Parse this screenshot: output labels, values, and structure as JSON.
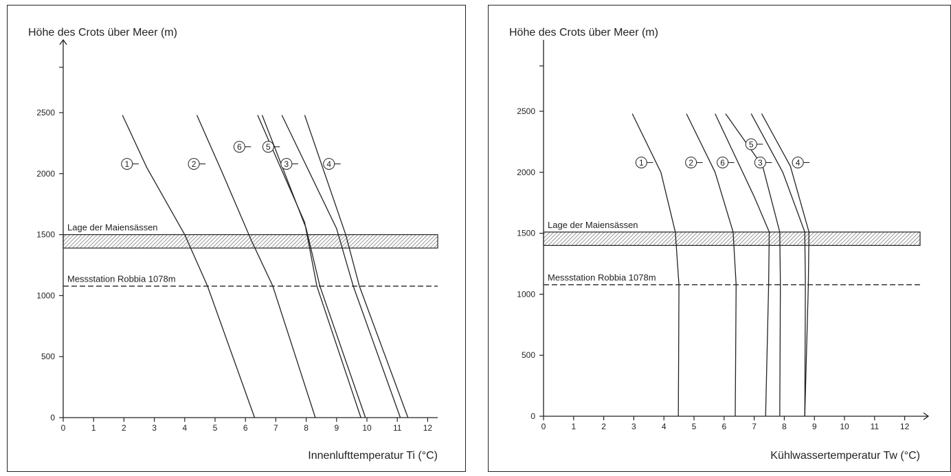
{
  "chart_data": [
    {
      "type": "line",
      "ylabel": "Höhe des Crots über Meer (m)",
      "xlabel": "Innenlufttemperatur Ti (°C)",
      "xlim": [
        0,
        12.4
      ],
      "ylim": [
        0,
        2900
      ],
      "x_ticks": [
        "0",
        "1",
        "2",
        "3",
        "4",
        "5",
        "6",
        "7",
        "8",
        "9",
        "10",
        "11",
        "12"
      ],
      "y_ticks": [
        "0",
        "500",
        "1000",
        "1500",
        "2000",
        "2500"
      ],
      "band": {
        "label": "Lage der Maiensässen",
        "y_from": 1390,
        "y_to": 1500
      },
      "reference_line": {
        "label": "Messstation Robbia 1078m",
        "y": 1078
      },
      "series": [
        {
          "name": "1",
          "points": [
            [
              6.3,
              0
            ],
            [
              4.75,
              1078
            ],
            [
              4.0,
              1500
            ],
            [
              2.75,
              2050
            ],
            [
              1.95,
              2480
            ]
          ]
        },
        {
          "name": "2",
          "points": [
            [
              8.3,
              0
            ],
            [
              6.9,
              1078
            ],
            [
              6.2,
              1450
            ],
            [
              5.25,
              2000
            ],
            [
              4.4,
              2480
            ]
          ]
        },
        {
          "name": "6",
          "points": [
            [
              9.8,
              0
            ],
            [
              8.35,
              1078
            ],
            [
              7.95,
              1600
            ],
            [
              6.4,
              2480
            ]
          ]
        },
        {
          "name": "3",
          "points": [
            [
              9.95,
              0
            ],
            [
              8.45,
              1078
            ],
            [
              8.0,
              1550
            ],
            [
              6.55,
              2480
            ]
          ]
        },
        {
          "name": "5",
          "points": [
            [
              11.1,
              0
            ],
            [
              9.55,
              1078
            ],
            [
              9.0,
              1550
            ],
            [
              7.2,
              2480
            ]
          ]
        },
        {
          "name": "4",
          "points": [
            [
              11.35,
              0
            ],
            [
              9.75,
              1078
            ],
            [
              9.3,
              1500
            ],
            [
              7.95,
              2480
            ]
          ]
        }
      ],
      "labels": [
        {
          "text": "1",
          "x": 2.1,
          "y": 2080
        },
        {
          "text": "2",
          "x": 4.3,
          "y": 2080
        },
        {
          "text": "6",
          "x": 5.8,
          "y": 2220
        },
        {
          "text": "3",
          "x": 7.35,
          "y": 2080
        },
        {
          "text": "5",
          "x": 6.75,
          "y": 2220
        },
        {
          "text": "4",
          "x": 8.75,
          "y": 2080
        }
      ]
    },
    {
      "type": "line",
      "ylabel": "Höhe des Crots über Meer (m)",
      "xlabel": "Kühlwassertemperatur Tw (°C)",
      "xlim": [
        0,
        12.4
      ],
      "ylim": [
        0,
        2900
      ],
      "x_ticks": [
        "0",
        "1",
        "2",
        "3",
        "4",
        "5",
        "6",
        "7",
        "8",
        "9",
        "10",
        "11",
        "12"
      ],
      "y_ticks": [
        "0",
        "500",
        "1000",
        "1500",
        "2000",
        "2500"
      ],
      "band": {
        "label": "Lage der Maiensässen",
        "y_from": 1400,
        "y_to": 1510
      },
      "reference_line": {
        "label": "Messstation Robbia 1078m",
        "y": 1078
      },
      "series": [
        {
          "name": "1",
          "points": [
            [
              4.48,
              0
            ],
            [
              4.5,
              1078
            ],
            [
              4.38,
              1510
            ],
            [
              3.9,
              2000
            ],
            [
              2.95,
              2480
            ]
          ]
        },
        {
          "name": "2",
          "points": [
            [
              6.37,
              0
            ],
            [
              6.4,
              1078
            ],
            [
              6.3,
              1510
            ],
            [
              5.7,
              2000
            ],
            [
              4.75,
              2480
            ]
          ]
        },
        {
          "name": "6",
          "points": [
            [
              7.38,
              0
            ],
            [
              7.48,
              1078
            ],
            [
              7.5,
              1510
            ],
            [
              7.0,
              1800
            ],
            [
              5.7,
              2480
            ]
          ]
        },
        {
          "name": "3",
          "points": [
            [
              7.85,
              0
            ],
            [
              7.87,
              1078
            ],
            [
              7.85,
              1510
            ],
            [
              7.28,
              2050
            ],
            [
              6.05,
              2480
            ]
          ]
        },
        {
          "name": "5",
          "points": [
            [
              8.68,
              0
            ],
            [
              8.7,
              1078
            ],
            [
              8.68,
              1510
            ],
            [
              7.95,
              2000
            ],
            [
              6.9,
              2480
            ]
          ]
        },
        {
          "name": "4",
          "points": [
            [
              8.68,
              0
            ],
            [
              8.8,
              1078
            ],
            [
              8.82,
              1510
            ],
            [
              8.2,
              2050
            ],
            [
              7.25,
              2480
            ]
          ]
        }
      ],
      "labels": [
        {
          "text": "1",
          "x": 3.25,
          "y": 2080
        },
        {
          "text": "2",
          "x": 4.9,
          "y": 2080
        },
        {
          "text": "6",
          "x": 5.95,
          "y": 2080
        },
        {
          "text": "3",
          "x": 7.2,
          "y": 2080
        },
        {
          "text": "5",
          "x": 6.9,
          "y": 2230
        },
        {
          "text": "4",
          "x": 8.45,
          "y": 2080
        }
      ]
    }
  ]
}
